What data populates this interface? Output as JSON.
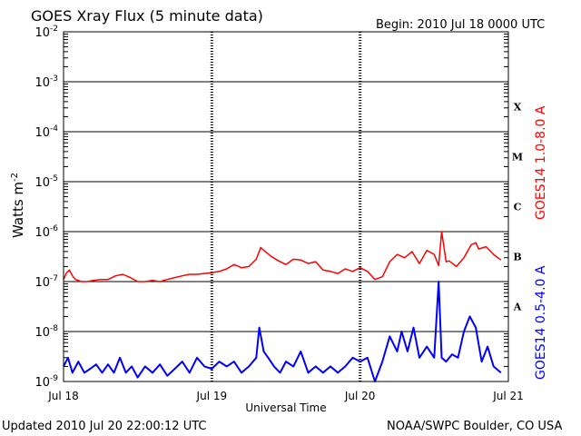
{
  "header": {
    "title": "GOES Xray Flux (5 minute data)",
    "begin": "Begin:  2010 Jul 18 0000 UTC"
  },
  "footer": {
    "updated": "Updated 2010 Jul 20 22:00:12 UTC",
    "source": "NOAA/SWPC Boulder, CO USA"
  },
  "colors": {
    "long_channel": "#ff0000",
    "short_channel": "#0000ff",
    "frame": "#000000"
  },
  "chart_data": {
    "type": "line",
    "title": "GOES Xray Flux (5 minute data)",
    "xlabel": "Universal Time",
    "ylabel_main": "Watts m",
    "ylabel_exp": "-2",
    "yscale": "log",
    "ylim": [
      1e-09,
      0.01
    ],
    "xlim": [
      0,
      3
    ],
    "x_unit": "days since 2010 Jul 18 0000 UTC",
    "x_ticks": [
      {
        "value": 0,
        "label": "Jul 18"
      },
      {
        "value": 1,
        "label": "Jul 19"
      },
      {
        "value": 2,
        "label": "Jul 20"
      },
      {
        "value": 3,
        "label": "Jul 21"
      }
    ],
    "y_ticks": [
      {
        "value": 1e-09,
        "base": "10",
        "exp": "-9"
      },
      {
        "value": 1e-08,
        "base": "10",
        "exp": "-8"
      },
      {
        "value": 1e-07,
        "base": "10",
        "exp": "-7"
      },
      {
        "value": 1e-06,
        "base": "10",
        "exp": "-6"
      },
      {
        "value": 1e-05,
        "base": "10",
        "exp": "-5"
      },
      {
        "value": 0.0001,
        "base": "10",
        "exp": "-4"
      },
      {
        "value": 0.001,
        "base": "10",
        "exp": "-3"
      },
      {
        "value": 0.01,
        "base": "10",
        "exp": "-2"
      }
    ],
    "flare_classes": [
      {
        "label": "A",
        "value": 3.16e-08
      },
      {
        "label": "B",
        "value": 3.16e-07
      },
      {
        "label": "C",
        "value": 3.16e-06
      },
      {
        "label": "M",
        "value": 3.16e-05
      },
      {
        "label": "X",
        "value": 0.000316
      }
    ],
    "grid": true,
    "series": [
      {
        "name": "GOES14 1.0-8.0 A",
        "color": "#ff0000",
        "x": [
          0.0,
          0.02,
          0.04,
          0.06,
          0.08,
          0.12,
          0.16,
          0.2,
          0.25,
          0.3,
          0.35,
          0.4,
          0.45,
          0.5,
          0.52,
          0.55,
          0.6,
          0.65,
          0.7,
          0.75,
          0.8,
          0.85,
          0.9,
          0.95,
          1.0,
          1.05,
          1.1,
          1.15,
          1.2,
          1.25,
          1.3,
          1.33,
          1.36,
          1.4,
          1.45,
          1.5,
          1.55,
          1.6,
          1.65,
          1.7,
          1.75,
          1.8,
          1.85,
          1.9,
          1.95,
          2.0,
          2.05,
          2.1,
          2.15,
          2.2,
          2.25,
          2.3,
          2.35,
          2.4,
          2.45,
          2.5,
          2.53,
          2.55,
          2.58,
          2.6,
          2.65,
          2.7,
          2.75,
          2.78,
          2.8,
          2.85,
          2.9,
          2.95
        ],
        "y": [
          1.1e-07,
          1.5e-07,
          1.7e-07,
          1.3e-07,
          1.1e-07,
          1e-07,
          1e-07,
          1.05e-07,
          1.1e-07,
          1.1e-07,
          1.3e-07,
          1.4e-07,
          1.2e-07,
          1e-07,
          1e-07,
          1e-07,
          1.05e-07,
          1e-07,
          1.1e-07,
          1.2e-07,
          1.3e-07,
          1.4e-07,
          1.4e-07,
          1.45e-07,
          1.5e-07,
          1.6e-07,
          1.8e-07,
          2.2e-07,
          1.9e-07,
          2e-07,
          2.8e-07,
          4.8e-07,
          4e-07,
          3.2e-07,
          2.6e-07,
          2.2e-07,
          2.8e-07,
          2.7e-07,
          2.3e-07,
          2.5e-07,
          1.7e-07,
          1.6e-07,
          1.45e-07,
          1.8e-07,
          1.6e-07,
          1.9e-07,
          1.6e-07,
          1.1e-07,
          1.25e-07,
          2.5e-07,
          3.5e-07,
          3e-07,
          4e-07,
          2.3e-07,
          4.2e-07,
          3.5e-07,
          2.1e-07,
          1e-06,
          2.5e-07,
          2.6e-07,
          2e-07,
          3e-07,
          5.5e-07,
          6e-07,
          4.5e-07,
          5e-07,
          3.5e-07,
          2.7e-07
        ]
      },
      {
        "name": "GOES14 0.5-4.0 A",
        "color": "#0000ff",
        "x": [
          0.0,
          0.03,
          0.06,
          0.1,
          0.14,
          0.18,
          0.22,
          0.26,
          0.3,
          0.34,
          0.38,
          0.42,
          0.46,
          0.5,
          0.55,
          0.6,
          0.65,
          0.7,
          0.75,
          0.8,
          0.85,
          0.9,
          0.95,
          1.0,
          1.05,
          1.1,
          1.15,
          1.2,
          1.25,
          1.3,
          1.32,
          1.35,
          1.38,
          1.42,
          1.46,
          1.5,
          1.55,
          1.6,
          1.65,
          1.7,
          1.75,
          1.8,
          1.85,
          1.9,
          1.95,
          2.0,
          2.05,
          2.1,
          2.15,
          2.2,
          2.25,
          2.28,
          2.32,
          2.36,
          2.4,
          2.45,
          2.5,
          2.53,
          2.55,
          2.58,
          2.62,
          2.66,
          2.7,
          2.74,
          2.78,
          2.82,
          2.86,
          2.9,
          2.95
        ],
        "y": [
          2e-09,
          3e-09,
          1.5e-09,
          2.5e-09,
          1.5e-09,
          1.8e-09,
          2.2e-09,
          1.5e-09,
          2.2e-09,
          1.5e-09,
          3e-09,
          1.5e-09,
          2e-09,
          1.2e-09,
          2e-09,
          1.5e-09,
          2.2e-09,
          1.3e-09,
          1.8e-09,
          2.5e-09,
          1.5e-09,
          3e-09,
          2e-09,
          1.8e-09,
          2.5e-09,
          2e-09,
          2.5e-09,
          1.5e-09,
          2e-09,
          3e-09,
          1.2e-08,
          4e-09,
          3e-09,
          2e-09,
          1.5e-09,
          2.5e-09,
          2e-09,
          4e-09,
          1.5e-09,
          2e-09,
          1.5e-09,
          2e-09,
          1.5e-09,
          2e-09,
          3e-09,
          2.5e-09,
          3e-09,
          1e-09,
          2.5e-09,
          8e-09,
          4e-09,
          1e-08,
          4e-09,
          1.2e-08,
          3e-09,
          5e-09,
          3e-09,
          1e-07,
          3e-09,
          2.5e-09,
          3.5e-09,
          3e-09,
          1e-08,
          2e-08,
          1.2e-08,
          2.5e-09,
          5e-09,
          2e-09,
          1.5e-09
        ]
      }
    ]
  }
}
